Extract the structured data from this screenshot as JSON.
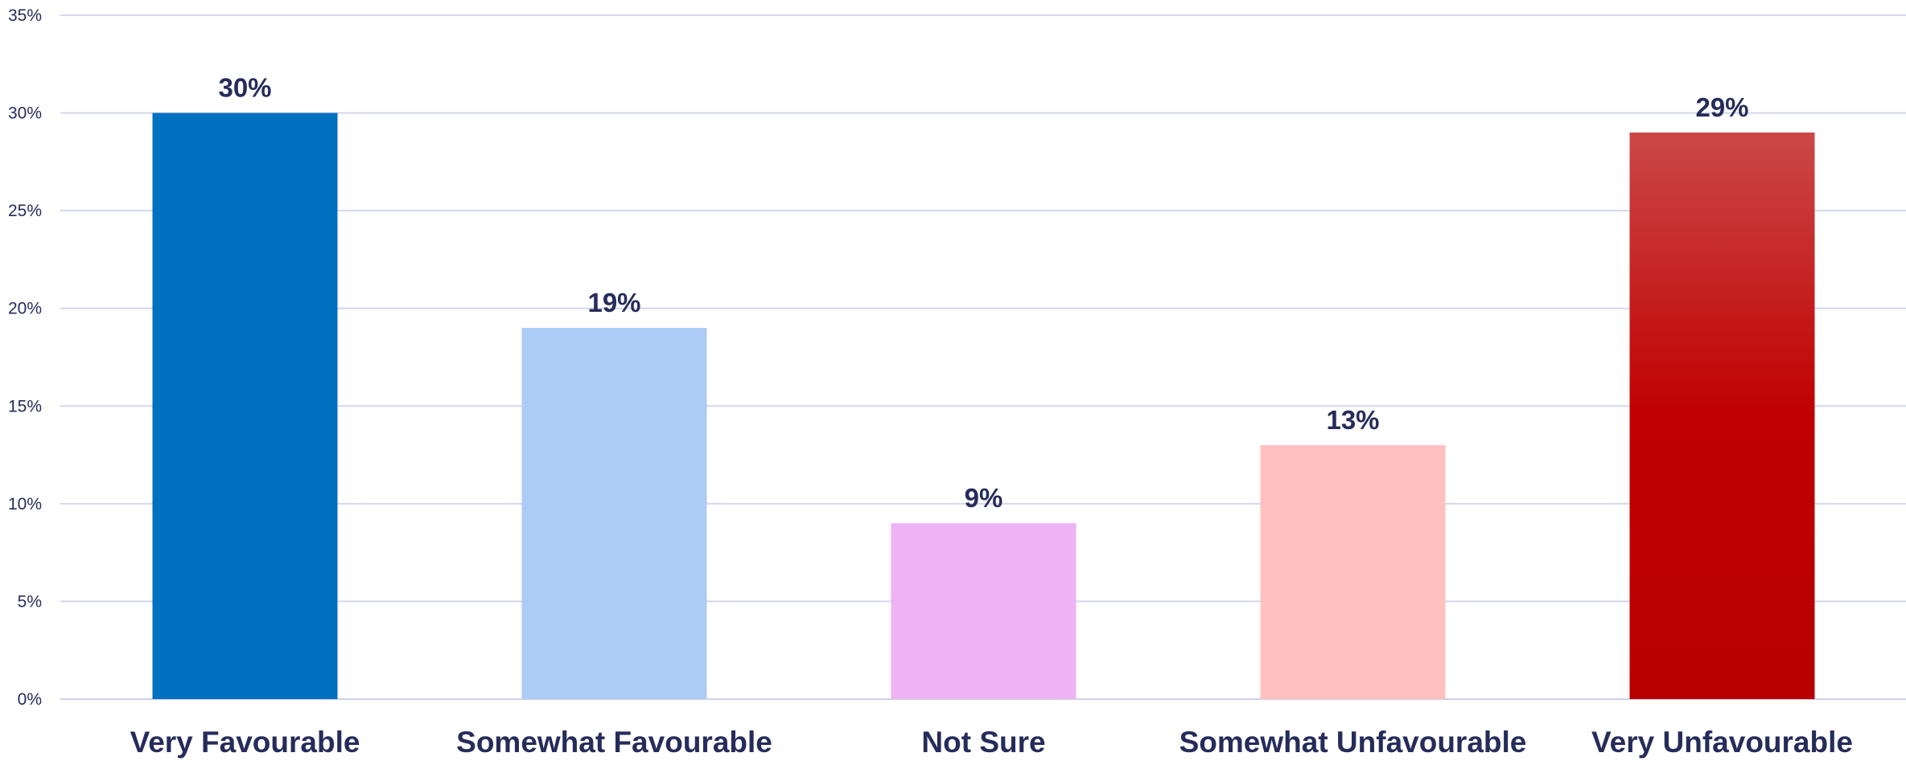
{
  "chart_data": {
    "type": "bar",
    "categories": [
      "Very Favourable",
      "Somewhat Favourable",
      "Not Sure",
      "Somewhat Unfavourable",
      "Very Unfavourable"
    ],
    "values": [
      30,
      19,
      9,
      13,
      29
    ],
    "data_labels": [
      "30%",
      "19%",
      "9%",
      "13%",
      "29%"
    ],
    "colors": [
      "#0070c0",
      "#adcbf7",
      "#edb3f3",
      "#ffc0c0",
      "#c00000"
    ],
    "title": "",
    "xlabel": "",
    "ylabel": "",
    "ylim": [
      0,
      35
    ],
    "yticks": [
      0,
      5,
      10,
      15,
      20,
      25,
      30,
      35
    ],
    "ytick_labels": [
      "0%",
      "5%",
      "10%",
      "15%",
      "20%",
      "25%",
      "30%",
      "35%"
    ],
    "grid": true,
    "legend": "none"
  }
}
